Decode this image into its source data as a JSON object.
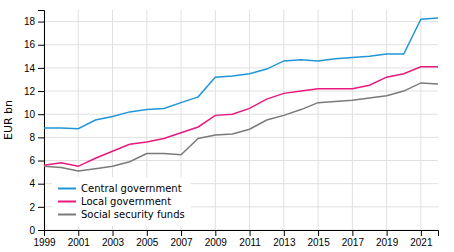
{
  "chart_data": {
    "type": "line",
    "ylabel": "EUR bn",
    "x": [
      1999,
      2000,
      2001,
      2002,
      2003,
      2004,
      2005,
      2006,
      2007,
      2008,
      2009,
      2010,
      2011,
      2012,
      2013,
      2014,
      2015,
      2016,
      2017,
      2018,
      2019,
      2020,
      2021,
      2022
    ],
    "series": [
      {
        "name": "Central government",
        "color": "#2196d6",
        "values": [
          8.8,
          8.8,
          8.75,
          9.5,
          9.8,
          10.2,
          10.4,
          10.5,
          11.0,
          11.5,
          13.2,
          13.3,
          13.5,
          13.9,
          14.6,
          14.7,
          14.6,
          14.8,
          14.9,
          15.0,
          15.2,
          15.2,
          18.2,
          18.3
        ]
      },
      {
        "name": "Local government",
        "color": "#e8197d",
        "values": [
          5.6,
          5.8,
          5.5,
          6.2,
          6.8,
          7.4,
          7.6,
          7.9,
          8.4,
          8.9,
          9.9,
          10.0,
          10.5,
          11.3,
          11.8,
          12.0,
          12.2,
          12.2,
          12.2,
          12.5,
          13.2,
          13.5,
          14.1,
          14.1
        ]
      },
      {
        "name": "Social security funds",
        "color": "#7a7a7a",
        "values": [
          5.5,
          5.4,
          5.1,
          5.3,
          5.5,
          5.9,
          6.6,
          6.6,
          6.5,
          7.9,
          8.2,
          8.3,
          8.7,
          9.5,
          9.9,
          10.4,
          11.0,
          11.1,
          11.2,
          11.4,
          11.6,
          12.0,
          12.7,
          12.6
        ]
      }
    ],
    "xlim": [
      1999,
      2022
    ],
    "ylim": [
      0,
      19
    ],
    "xticks": [
      1999,
      2001,
      2003,
      2005,
      2007,
      2009,
      2011,
      2013,
      2015,
      2017,
      2019,
      2021
    ],
    "yticks": [
      0,
      2,
      4,
      6,
      8,
      10,
      12,
      14,
      16,
      18
    ],
    "grid": true,
    "legend": "lower left"
  }
}
